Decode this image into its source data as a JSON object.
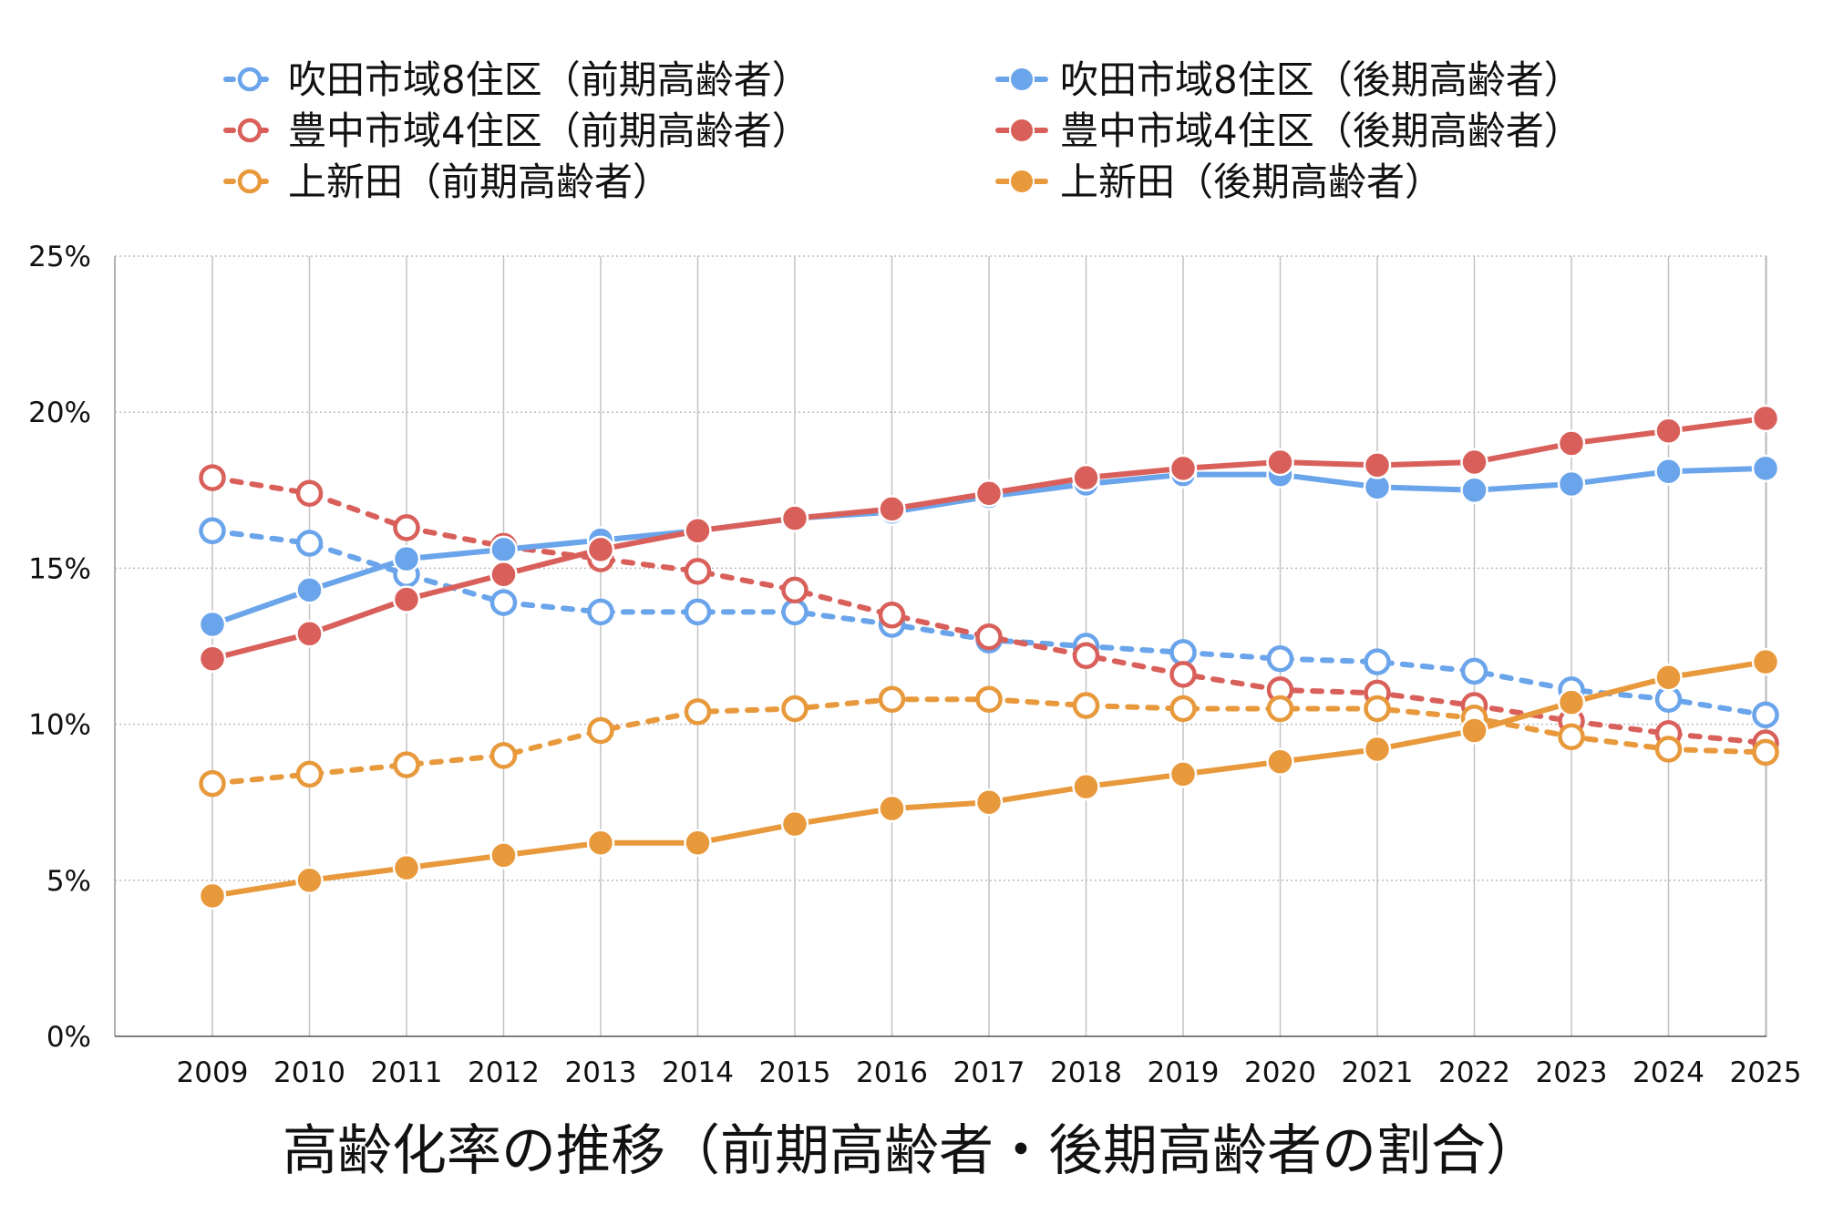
{
  "chart_data": {
    "type": "line",
    "title": "高齢化率の推移（前期高齢者・後期高齢者の割合）",
    "xlabel": "",
    "ylabel": "",
    "ylim": [
      0,
      25
    ],
    "y_ticks": [
      "0%",
      "5%",
      "10%",
      "15%",
      "20%",
      "25%"
    ],
    "grid": true,
    "legend_position": "top",
    "x": [
      "2009",
      "2010",
      "2011",
      "2012",
      "2013",
      "2014",
      "2015",
      "2016",
      "2017",
      "2018",
      "2019",
      "2020",
      "2021",
      "2022",
      "2023",
      "2024",
      "2025"
    ],
    "series": [
      {
        "name": "吹田市域8住区（前期高齢者）",
        "color": "#6aa4ea",
        "style": "dashed",
        "marker": "hollow",
        "values": [
          16.2,
          15.8,
          14.8,
          13.9,
          13.6,
          13.6,
          13.6,
          13.2,
          12.7,
          12.5,
          12.3,
          12.1,
          12.0,
          11.7,
          11.1,
          10.8,
          10.3
        ]
      },
      {
        "name": "吹田市域8住区（後期高齢者）",
        "color": "#6aa4ea",
        "style": "solid",
        "marker": "filled",
        "values": [
          13.2,
          14.3,
          15.3,
          15.6,
          15.9,
          16.2,
          16.6,
          16.8,
          17.3,
          17.7,
          18.0,
          18.0,
          17.6,
          17.5,
          17.7,
          18.1,
          18.2
        ]
      },
      {
        "name": "豊中市域4住区（前期高齢者）",
        "color": "#d9605a",
        "style": "dashed",
        "marker": "hollow",
        "values": [
          17.9,
          17.4,
          16.3,
          15.7,
          15.3,
          14.9,
          14.3,
          13.5,
          12.8,
          12.2,
          11.6,
          11.1,
          11.0,
          10.6,
          10.1,
          9.7,
          9.4
        ]
      },
      {
        "name": "豊中市域4住区（後期高齢者）",
        "color": "#d9605a",
        "style": "solid",
        "marker": "filled",
        "values": [
          12.1,
          12.9,
          14.0,
          14.8,
          15.6,
          16.2,
          16.6,
          16.9,
          17.4,
          17.9,
          18.2,
          18.4,
          18.3,
          18.4,
          19.0,
          19.4,
          19.8
        ]
      },
      {
        "name": "上新田（前期高齢者）",
        "color": "#e8993c",
        "style": "dashed",
        "marker": "hollow",
        "values": [
          8.1,
          8.4,
          8.7,
          9.0,
          9.8,
          10.4,
          10.5,
          10.8,
          10.8,
          10.6,
          10.5,
          10.5,
          10.5,
          10.2,
          9.6,
          9.2,
          9.1
        ]
      },
      {
        "name": "上新田（後期高齢者）",
        "color": "#e8993c",
        "style": "solid",
        "marker": "filled",
        "values": [
          4.5,
          5.0,
          5.4,
          5.8,
          6.2,
          6.2,
          6.8,
          7.3,
          7.5,
          8.0,
          8.4,
          8.8,
          9.2,
          9.8,
          10.7,
          11.5,
          12.0
        ]
      }
    ]
  }
}
